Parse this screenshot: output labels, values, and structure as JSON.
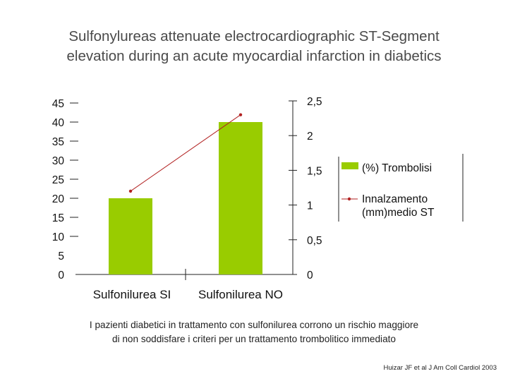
{
  "title_lines": [
    "Sulfonylureas attenuate electrocardiographic ST-Segment",
    "elevation during an acute myocardial infarction in diabetics"
  ],
  "caption_lines": [
    "I pazienti diabetici in trattamento con sulfonilurea corrono un rischio maggiore",
    "di non soddisfare i criteri per un trattamento trombolitico immediato"
  ],
  "citation": "Huizar JF et al J Am Coll Cardiol 2003",
  "chart_data": {
    "type": "bar",
    "categories": [
      "Sulfonilurea SI",
      "Sulfonilurea NO"
    ],
    "series": [
      {
        "name": "(%) Trombolisi",
        "type": "bar",
        "axis": "left",
        "color": "#99cc00",
        "values": [
          20,
          40
        ]
      },
      {
        "name": "Innalzamento (mm)medio ST",
        "type": "line",
        "axis": "right",
        "color": "#b22222",
        "values": [
          1.2,
          2.3
        ]
      }
    ],
    "y_left": {
      "ticks": [
        "0",
        "5",
        "10",
        "15",
        "20",
        "25",
        "30",
        "35",
        "40",
        "45"
      ],
      "range": [
        0,
        45
      ]
    },
    "y_right": {
      "ticks": [
        "0",
        "0,5",
        "1",
        "1,5",
        "2",
        "2,5"
      ],
      "range": [
        0,
        2.5
      ]
    },
    "legend": {
      "position": "right",
      "entries": [
        {
          "lines": [
            "(%) Trombolisi"
          ]
        },
        {
          "lines": [
            "Innalzamento",
            "(mm)medio ST"
          ]
        }
      ]
    }
  }
}
